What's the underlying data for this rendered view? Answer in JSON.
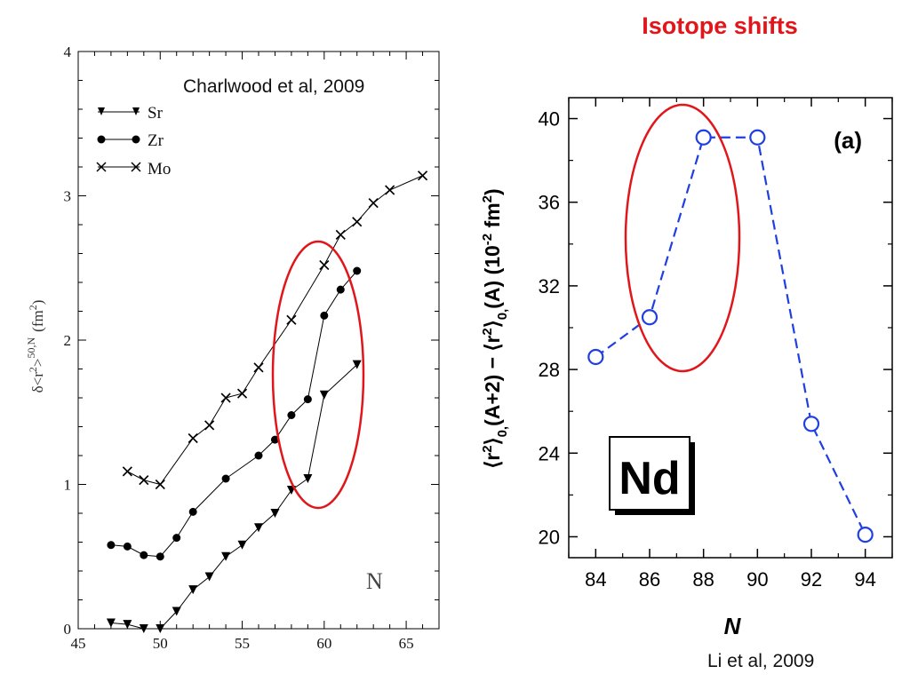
{
  "page": {
    "title": "Isotope shifts",
    "credit_left": "Charlwood et al, 2009",
    "credit_right": "Li et al, 2009"
  },
  "chart_data": [
    {
      "type": "line",
      "ylabel_main": "δ<r",
      "ylabel_sup": "2",
      "ylabel_gt": ">",
      "ylabel_sup2": "50,N",
      "ylabel_unit": "(fm",
      "ylabel_unit_sup": "2",
      "ylabel_close": ")",
      "xlabel": "N",
      "xlim": [
        45,
        67
      ],
      "ylim": [
        0,
        4
      ],
      "xticks": [
        "45",
        "50",
        "55",
        "60",
        "65"
      ],
      "yticks": [
        "0",
        "1",
        "2",
        "3",
        "4"
      ],
      "legend_position": "top-left",
      "highlight_ellipse_color": "#e0161b",
      "series": [
        {
          "name": "Sr",
          "marker": "triangle-down",
          "x": [
            47,
            48,
            49,
            50,
            51,
            52,
            53,
            54,
            55,
            56,
            57,
            58,
            59,
            60,
            62
          ],
          "y": [
            0.04,
            0.03,
            0.0,
            0.0,
            0.12,
            0.27,
            0.36,
            0.5,
            0.58,
            0.7,
            0.8,
            0.96,
            1.04,
            1.62,
            1.83
          ]
        },
        {
          "name": "Zr",
          "marker": "circle",
          "x": [
            47,
            48,
            49,
            50,
            51,
            52,
            54,
            56,
            57,
            58,
            59,
            60,
            61,
            62
          ],
          "y": [
            0.58,
            0.57,
            0.51,
            0.5,
            0.63,
            0.81,
            1.04,
            1.2,
            1.31,
            1.48,
            1.59,
            2.17,
            2.35,
            2.48
          ]
        },
        {
          "name": "Mo",
          "marker": "cross",
          "x": [
            48,
            49,
            50,
            52,
            53,
            54,
            55,
            56,
            58,
            60,
            61,
            62,
            63,
            64,
            66
          ],
          "y": [
            1.09,
            1.03,
            1.0,
            1.32,
            1.41,
            1.6,
            1.63,
            1.81,
            2.14,
            2.52,
            2.73,
            2.82,
            2.95,
            3.04,
            3.14
          ]
        }
      ]
    },
    {
      "type": "line",
      "panel_label": "(a)",
      "element_label": "Nd",
      "xlabel": "N",
      "ylabel_parts": [
        "⟨r",
        "2",
        "⟩",
        "0,",
        "(A+2) − ⟨r",
        "2",
        "⟩",
        "0,",
        "(A) (10",
        "-2",
        " fm",
        "2",
        ")"
      ],
      "xlim": [
        83,
        95
      ],
      "ylim": [
        19,
        41
      ],
      "xticks": [
        "84",
        "86",
        "88",
        "90",
        "92",
        "94"
      ],
      "yticks": [
        "20",
        "24",
        "28",
        "32",
        "36",
        "40"
      ],
      "line_color": "#1f3fe0",
      "line_style": "dashed",
      "marker": "open-circle",
      "highlight_ellipse_color": "#e0161b",
      "x": [
        84,
        86,
        88,
        90,
        92,
        94
      ],
      "y": [
        28.6,
        30.5,
        39.1,
        39.1,
        25.4,
        20.1
      ]
    }
  ]
}
